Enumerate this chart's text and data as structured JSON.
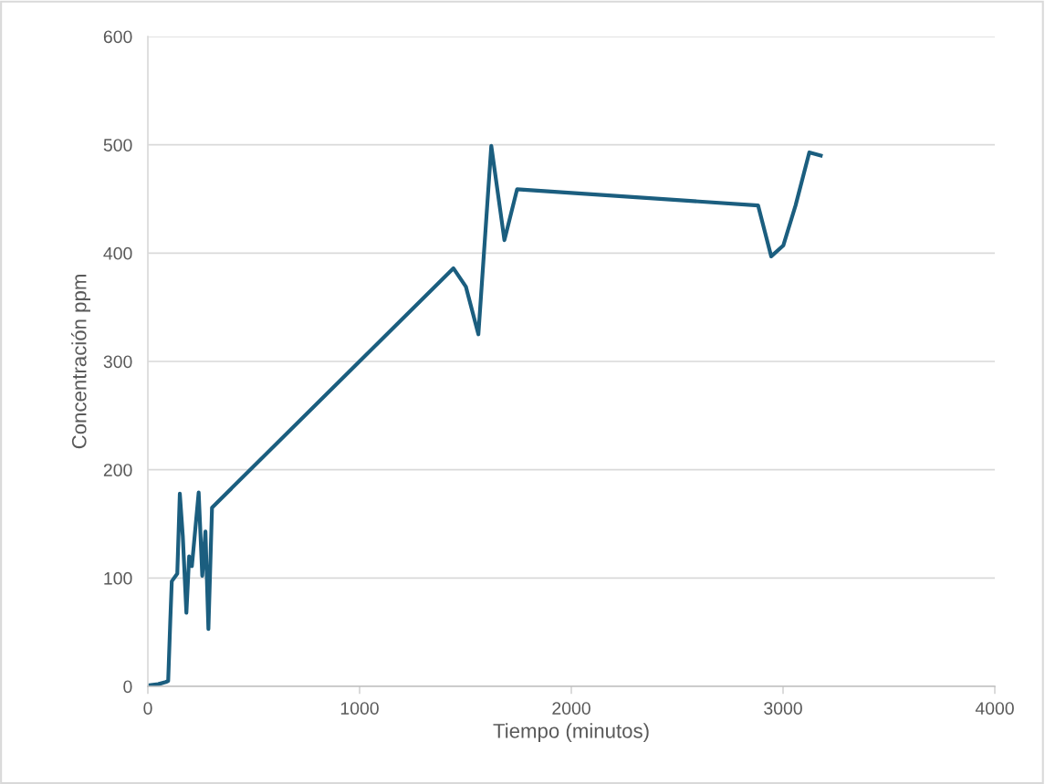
{
  "chart_data": {
    "type": "line",
    "xlabel": "Tiempo (minutos)",
    "ylabel": "Concentración ppm",
    "x": [
      6,
      49,
      85,
      96,
      106,
      113,
      139,
      151,
      165,
      182,
      195,
      208,
      240,
      257,
      272,
      286,
      303,
      1443,
      1502,
      1561,
      1622,
      1684,
      1744,
      2882,
      2944,
      3001,
      3059,
      3124,
      3178
    ],
    "series": [
      {
        "color": "#1b5e7f",
        "values": [
          1,
          2,
          4,
          5,
          61,
          97,
          104,
          178,
          139,
          68,
          120,
          111,
          179,
          102,
          143,
          53,
          165,
          386,
          369,
          325,
          499,
          412,
          459,
          444,
          397,
          407,
          444,
          493,
          490
        ]
      }
    ],
    "xlim": [
      0,
      4000
    ],
    "xticks": [
      0,
      1000,
      2000,
      3000,
      4000
    ],
    "ylim": [
      0,
      600
    ],
    "yticks": [
      0,
      100,
      200,
      300,
      400,
      500,
      600
    ],
    "grid": "y",
    "marker": "none",
    "line_style": "solid"
  }
}
